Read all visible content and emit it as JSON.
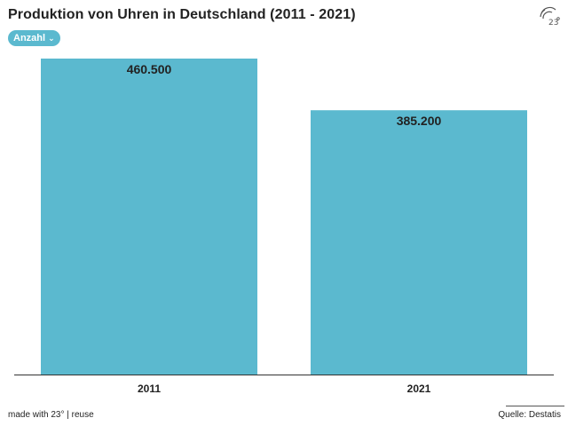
{
  "header": {
    "title": "Produktion von Uhren in Deutschland (2011 -  2021)",
    "dropdown_label": "Anzahl",
    "logo_icon": "23-degrees-logo-icon"
  },
  "footer": {
    "left_text": "made with 23° | reuse",
    "source": "Quelle: Destatis"
  },
  "colors": {
    "bar": "#5bb9cf",
    "axis": "#333333",
    "text": "#222222"
  },
  "chart_data": {
    "type": "bar",
    "categories": [
      "2011",
      "2021"
    ],
    "values": [
      460500,
      385200
    ],
    "value_labels": [
      "460.500",
      "385.200"
    ],
    "ylim": [
      0,
      460500
    ],
    "grid": false
  }
}
